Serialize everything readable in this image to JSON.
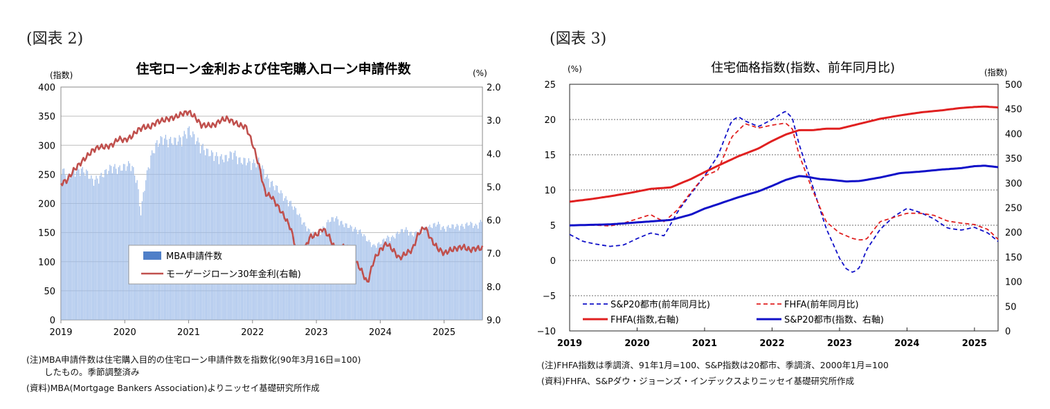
{
  "fig2": {
    "label": "(図表 2)",
    "notes": [
      "(注)MBA申請件数は住宅購入目的の住宅ローン申請件数を指数化(90年3月16日=100)",
      "したもの。季節調整済み",
      "(資料)MBA(Mortgage Bankers Association)よりニッセイ基礎研究所作成"
    ]
  },
  "fig3": {
    "label": "(図表 3)",
    "notes": [
      "(注)FHFA指数は季調済、91年1月=100、S&P指数は20都市、季調済、2000年1月=100",
      "(資料)FHFA、S&Pダウ・ジョーンズ・インデックスよりニッセイ基礎研究所作成"
    ]
  },
  "chart_data": [
    {
      "type": "bar",
      "title": "住宅ローン金利および住宅購入ローン申請件数",
      "left_unit": "(指数)",
      "right_unit": "(%)",
      "ylim": [
        0,
        400
      ],
      "y_ticks": [
        "0",
        "50",
        "100",
        "150",
        "200",
        "250",
        "300",
        "350",
        "400"
      ],
      "y2lim": [
        2.0,
        9.0
      ],
      "y2_inverted": true,
      "y2_ticks": [
        "2.0",
        "3.0",
        "4.0",
        "5.0",
        "6.0",
        "7.0",
        "8.0",
        "9.0"
      ],
      "x_ticks": [
        "2019",
        "2020",
        "2021",
        "2022",
        "2023",
        "2024",
        "2025"
      ],
      "xlim": [
        2019.0,
        2025.6
      ],
      "legend_position": "center",
      "colors": {
        "bars": "#9dbbe8",
        "legend_bar": "#4f7fc8",
        "line": "#c0504d"
      },
      "series": [
        {
          "name": "MBA申請件数",
          "type": "bar",
          "x": [
            2019.0,
            2019.1,
            2019.2,
            2019.3,
            2019.4,
            2019.5,
            2019.6,
            2019.7,
            2019.8,
            2019.9,
            2020.0,
            2020.1,
            2020.2,
            2020.25,
            2020.3,
            2020.4,
            2020.5,
            2020.6,
            2020.7,
            2020.8,
            2020.9,
            2021.0,
            2021.1,
            2021.2,
            2021.3,
            2021.4,
            2021.5,
            2021.6,
            2021.7,
            2021.8,
            2021.9,
            2022.0,
            2022.1,
            2022.2,
            2022.3,
            2022.4,
            2022.5,
            2022.6,
            2022.7,
            2022.8,
            2022.9,
            2023.0,
            2023.1,
            2023.2,
            2023.3,
            2023.4,
            2023.5,
            2023.6,
            2023.7,
            2023.8,
            2023.9,
            2024.0,
            2024.1,
            2024.2,
            2024.3,
            2024.4,
            2024.5,
            2024.6,
            2024.7,
            2024.8,
            2024.9,
            2025.0,
            2025.1,
            2025.2,
            2025.3,
            2025.4,
            2025.5,
            2025.6
          ],
          "values": [
            270,
            250,
            260,
            265,
            260,
            245,
            250,
            260,
            270,
            265,
            270,
            275,
            240,
            185,
            230,
            285,
            310,
            320,
            315,
            315,
            320,
            335,
            320,
            305,
            295,
            290,
            285,
            285,
            295,
            280,
            280,
            275,
            280,
            255,
            240,
            230,
            215,
            205,
            190,
            170,
            155,
            150,
            160,
            175,
            180,
            170,
            165,
            160,
            155,
            140,
            130,
            135,
            145,
            145,
            155,
            160,
            150,
            155,
            160,
            165,
            170,
            160,
            165,
            165,
            165,
            170,
            165,
            175
          ]
        },
        {
          "name": "モーゲージローン30年金利(右軸)",
          "type": "line",
          "axis": "right",
          "x": [
            2019.0,
            2019.1,
            2019.2,
            2019.3,
            2019.4,
            2019.5,
            2019.6,
            2019.7,
            2019.8,
            2019.9,
            2020.0,
            2020.1,
            2020.2,
            2020.3,
            2020.4,
            2020.5,
            2020.6,
            2020.7,
            2020.8,
            2020.9,
            2021.0,
            2021.1,
            2021.2,
            2021.3,
            2021.4,
            2021.5,
            2021.6,
            2021.7,
            2021.8,
            2021.9,
            2022.0,
            2022.1,
            2022.2,
            2022.3,
            2022.4,
            2022.5,
            2022.6,
            2022.7,
            2022.8,
            2022.9,
            2023.0,
            2023.1,
            2023.2,
            2023.3,
            2023.4,
            2023.5,
            2023.6,
            2023.7,
            2023.8,
            2023.9,
            2024.0,
            2024.1,
            2024.2,
            2024.3,
            2024.4,
            2024.5,
            2024.6,
            2024.7,
            2024.8,
            2024.9,
            2025.0,
            2025.1,
            2025.2,
            2025.3,
            2025.4,
            2025.5,
            2025.6
          ],
          "values": [
            4.9,
            4.8,
            4.5,
            4.3,
            4.1,
            3.9,
            3.8,
            3.8,
            3.75,
            3.55,
            3.6,
            3.5,
            3.3,
            3.2,
            3.2,
            3.05,
            3.0,
            2.95,
            2.9,
            2.8,
            2.75,
            2.9,
            3.15,
            3.15,
            3.15,
            3.0,
            2.95,
            3.05,
            3.15,
            3.2,
            3.7,
            4.35,
            5.2,
            5.3,
            5.6,
            5.9,
            6.25,
            7.0,
            6.95,
            6.5,
            6.45,
            6.25,
            6.5,
            6.9,
            6.8,
            6.85,
            7.2,
            7.5,
            7.9,
            7.2,
            6.9,
            6.7,
            6.9,
            7.15,
            7.0,
            6.9,
            6.4,
            6.2,
            6.6,
            6.85,
            7.0,
            6.9,
            6.85,
            6.8,
            6.9,
            6.85,
            6.85
          ]
        }
      ]
    },
    {
      "type": "line",
      "title": "住宅価格指数(指数、前年同月比)",
      "left_unit": "(%)",
      "right_unit": "(指数)",
      "ylim": [
        -10,
        25
      ],
      "y_ticks": [
        "−10",
        "−5",
        "0",
        "5",
        "10",
        "15",
        "20",
        "25"
      ],
      "y2lim": [
        0,
        500
      ],
      "y2_ticks": [
        "0",
        "50",
        "100",
        "150",
        "200",
        "250",
        "300",
        "350",
        "400",
        "450",
        "500"
      ],
      "x_ticks": [
        "2019",
        "2020",
        "2021",
        "2022",
        "2023",
        "2024",
        "2025"
      ],
      "xlim": [
        2019.0,
        2025.35
      ],
      "legend_position": "bottom",
      "colors": {
        "fhfa": "#e02020",
        "sp": "#1010c8"
      },
      "series": [
        {
          "name": "S&P20都市(前年同月比)",
          "style": "dashed",
          "axis": "left",
          "x": [
            2019.0,
            2019.2,
            2019.4,
            2019.6,
            2019.8,
            2020.0,
            2020.2,
            2020.4,
            2020.6,
            2020.8,
            2021.0,
            2021.2,
            2021.4,
            2021.5,
            2021.6,
            2021.8,
            2022.0,
            2022.2,
            2022.3,
            2022.4,
            2022.6,
            2022.8,
            2023.0,
            2023.1,
            2023.2,
            2023.3,
            2023.4,
            2023.6,
            2023.8,
            2024.0,
            2024.2,
            2024.4,
            2024.6,
            2024.8,
            2025.0,
            2025.2,
            2025.35
          ],
          "values": [
            3.7,
            2.7,
            2.3,
            2.0,
            2.2,
            3.1,
            3.9,
            3.5,
            6.9,
            9.5,
            12.0,
            14.9,
            19.8,
            20.4,
            19.8,
            19.0,
            20.0,
            21.2,
            20.2,
            16.5,
            10.6,
            4.6,
            0.3,
            -1.2,
            -1.7,
            -1.0,
            1.5,
            4.4,
            6.2,
            7.4,
            6.8,
            5.9,
            4.6,
            4.3,
            4.7,
            3.9,
            2.7
          ]
        },
        {
          "name": "FHFA(前年同月比)",
          "style": "dashed",
          "axis": "left",
          "x": [
            2019.0,
            2019.2,
            2019.4,
            2019.6,
            2019.8,
            2020.0,
            2020.2,
            2020.4,
            2020.6,
            2020.8,
            2021.0,
            2021.2,
            2021.4,
            2021.6,
            2021.8,
            2022.0,
            2022.2,
            2022.3,
            2022.4,
            2022.6,
            2022.8,
            2023.0,
            2023.2,
            2023.3,
            2023.4,
            2023.6,
            2023.8,
            2024.0,
            2024.2,
            2024.4,
            2024.6,
            2024.8,
            2025.0,
            2025.2,
            2025.35
          ],
          "values": [
            5.0,
            5.0,
            5.0,
            4.9,
            5.3,
            5.9,
            6.5,
            5.5,
            7.2,
            9.7,
            12.0,
            12.8,
            17.5,
            19.4,
            18.8,
            19.2,
            19.5,
            18.7,
            15.0,
            10.0,
            5.5,
            3.9,
            3.1,
            2.9,
            3.0,
            5.5,
            6.1,
            6.7,
            6.7,
            6.4,
            5.6,
            5.3,
            5.1,
            4.4,
            3.0
          ]
        },
        {
          "name": "FHFA(指数,右軸)",
          "style": "solid",
          "axis": "right",
          "x": [
            2019.0,
            2019.3,
            2019.6,
            2019.9,
            2020.2,
            2020.5,
            2020.8,
            2021.0,
            2021.2,
            2021.5,
            2021.8,
            2022.0,
            2022.2,
            2022.4,
            2022.6,
            2022.8,
            2023.0,
            2023.3,
            2023.6,
            2023.9,
            2024.2,
            2024.5,
            2024.8,
            2025.0,
            2025.15,
            2025.35
          ],
          "values": [
            262,
            267,
            273,
            280,
            288,
            291,
            308,
            322,
            335,
            354,
            370,
            385,
            398,
            407,
            407,
            410,
            410,
            420,
            430,
            437,
            443,
            447,
            452,
            454,
            455,
            453
          ]
        },
        {
          "name": "S&P20都市(指数、右軸)",
          "style": "solid",
          "axis": "right",
          "x": [
            2019.0,
            2019.3,
            2019.6,
            2019.9,
            2020.2,
            2020.5,
            2020.8,
            2021.0,
            2021.2,
            2021.5,
            2021.8,
            2022.0,
            2022.2,
            2022.4,
            2022.5,
            2022.7,
            2022.9,
            2023.1,
            2023.3,
            2023.6,
            2023.9,
            2024.2,
            2024.5,
            2024.8,
            2025.0,
            2025.15,
            2025.35
          ],
          "values": [
            214,
            215,
            216,
            219,
            222,
            225,
            236,
            248,
            257,
            271,
            283,
            294,
            306,
            314,
            313,
            308,
            306,
            303,
            304,
            311,
            320,
            323,
            327,
            330,
            334,
            335,
            332
          ]
        }
      ]
    }
  ]
}
